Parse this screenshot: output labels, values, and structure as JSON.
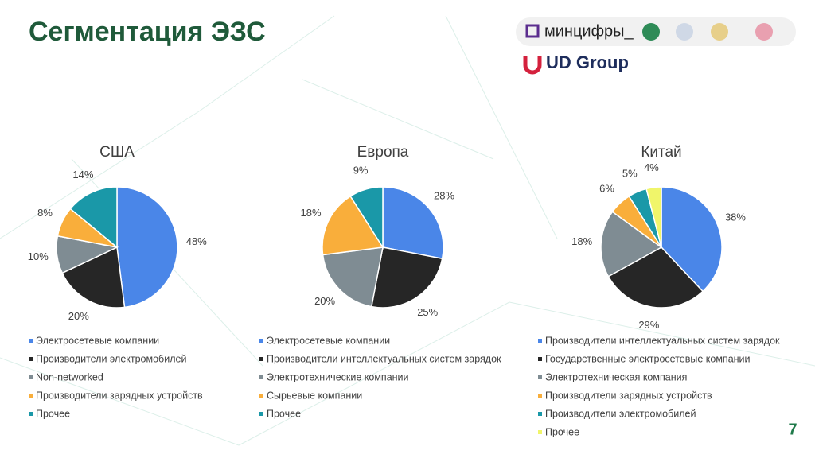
{
  "header": {
    "title": "Сегментация ЭЗС",
    "logo_text": "минцифры_",
    "brand": "UD Group",
    "page_number": "7"
  },
  "chart_data": [
    {
      "type": "pie",
      "title": "США",
      "categories": [
        "Электросетевые компании",
        "Производители электромобилей",
        "Non-networked",
        "Производители зарядных устройств",
        "Прочее"
      ],
      "values": [
        48,
        20,
        10,
        8,
        14
      ],
      "value_labels": [
        "48%",
        "20%",
        "10%",
        "8%",
        "14%"
      ],
      "colors": [
        "#4a86e8",
        "#262626",
        "#7f8c93",
        "#f9ae3b",
        "#1a98a8"
      ]
    },
    {
      "type": "pie",
      "title": "Европа",
      "categories": [
        "Электросетевые компании",
        "Производители интеллектуальных систем зарядок",
        "Электротехнические компании",
        "Сырьевые компании",
        "Прочее"
      ],
      "values": [
        28,
        25,
        20,
        18,
        9
      ],
      "value_labels": [
        "28%",
        "25%",
        "20%",
        "18%",
        "9%"
      ],
      "colors": [
        "#4a86e8",
        "#262626",
        "#7f8c93",
        "#f9ae3b",
        "#1a98a8"
      ]
    },
    {
      "type": "pie",
      "title": "Китай",
      "categories": [
        "Производители интеллектуальных систем зарядок",
        "Государственные электросетевые компании",
        "Электротехническая компания",
        "Производители зарядных устройств",
        "Производители электромобилей",
        "Прочее"
      ],
      "values": [
        38,
        29,
        18,
        6,
        5,
        4
      ],
      "value_labels": [
        "38%",
        "29%",
        "18%",
        "6%",
        "5%",
        "4%"
      ],
      "colors": [
        "#4a86e8",
        "#262626",
        "#7f8c93",
        "#f9ae3b",
        "#1a98a8",
        "#f0f56a"
      ]
    }
  ]
}
